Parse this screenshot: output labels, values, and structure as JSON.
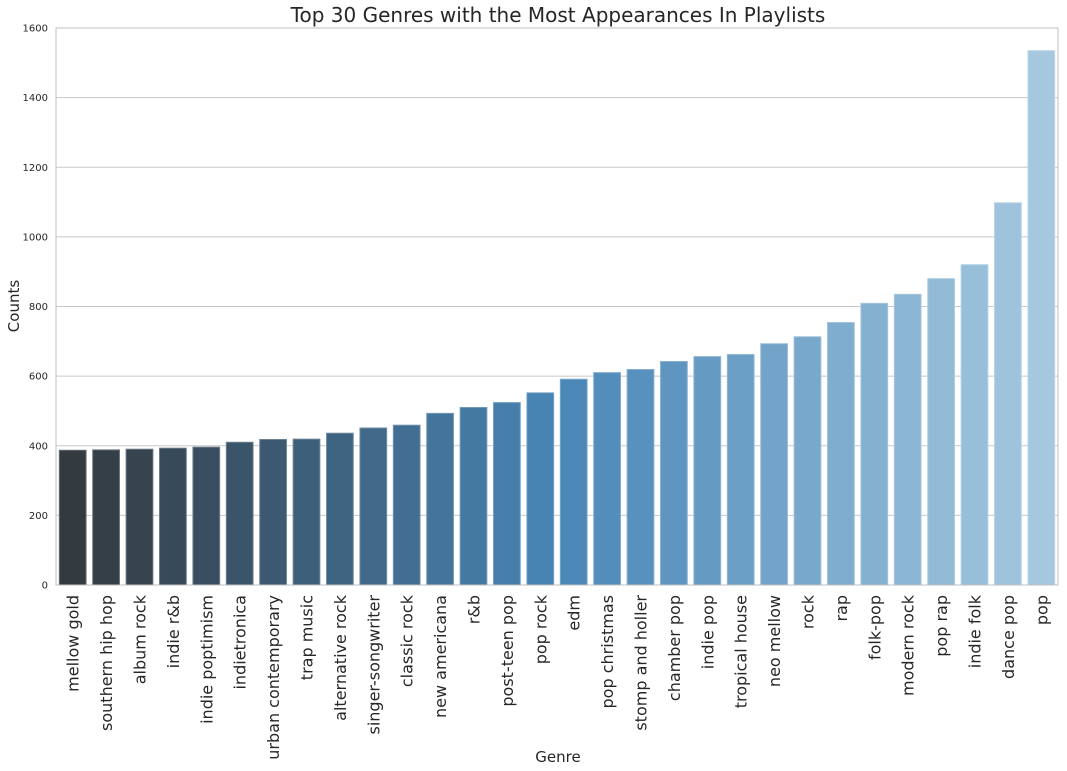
{
  "chart_data": {
    "type": "bar",
    "title": "Top 30 Genres with the Most Appearances In Playlists",
    "xlabel": "Genre",
    "ylabel": "Counts",
    "ylim": [
      0,
      1600
    ],
    "yticks": [
      0,
      200,
      400,
      600,
      800,
      1000,
      1200,
      1400,
      1600
    ],
    "grid": "horizontal",
    "categories": [
      "mellow gold",
      "southern hip hop",
      "album rock",
      "indie r&b",
      "indie poptimism",
      "indietronica",
      "urban contemporary",
      "trap music",
      "alternative rock",
      "singer-songwriter",
      "classic rock",
      "new americana",
      "r&b",
      "post-teen pop",
      "pop rock",
      "edm",
      "pop christmas",
      "stomp and holler",
      "chamber pop",
      "indie pop",
      "tropical house",
      "neo mellow",
      "rock",
      "rap",
      "folk-pop",
      "modern rock",
      "pop rap",
      "indie folk",
      "dance pop",
      "pop"
    ],
    "values": [
      387,
      388,
      390,
      393,
      396,
      410,
      418,
      419,
      436,
      451,
      459,
      493,
      510,
      524,
      552,
      591,
      610,
      619,
      642,
      656,
      662,
      693,
      713,
      754,
      809,
      835,
      880,
      920,
      1098,
      1535
    ],
    "colors": {
      "palette_start": "#333a40",
      "palette_mid": "#4886b7",
      "palette_end": "#a5c8df",
      "grid": "#c8c8c8",
      "text": "#262626"
    }
  }
}
